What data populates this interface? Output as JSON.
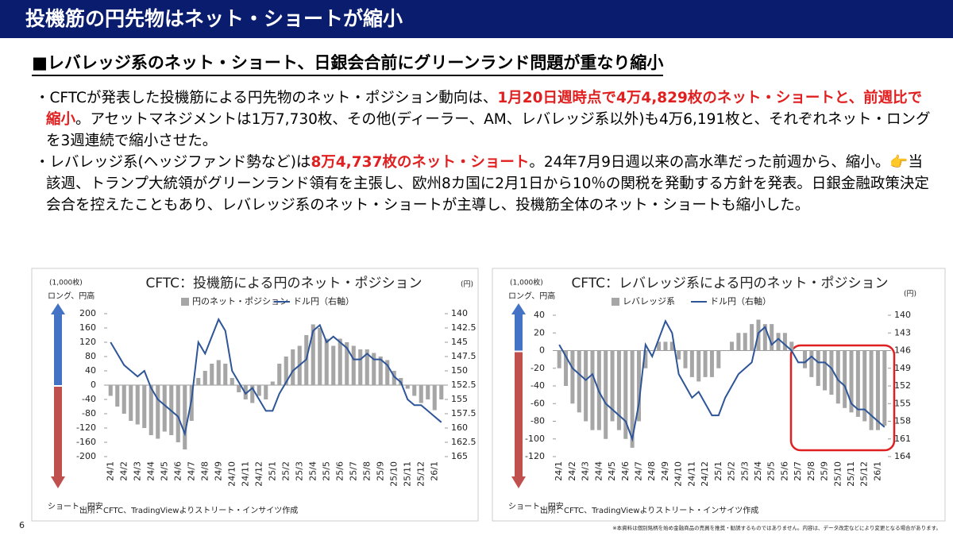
{
  "header": {
    "title": "投機筋の円先物はネット・ショートが縮小"
  },
  "subtitle": "■レバレッジ系のネット・ショート、日銀会合前にグリーンランド問題が重なり縮小",
  "bullets": [
    {
      "segments": [
        {
          "text": "・CFTCが発表した投機筋による円先物のネット・ポジション動向は、",
          "highlight": false
        },
        {
          "text": "1月20日週時点で4万4,829枚のネット・ショートと、前週比で縮小",
          "highlight": true
        },
        {
          "text": "。アセットマネジメントは1万7,730枚、その他(ディーラー、AM、レバレッジ系以外)も4万6,191枚と、それぞれネット・ロングを3週連続で縮小させた。",
          "highlight": false
        }
      ]
    },
    {
      "segments": [
        {
          "text": "・レバレッジ系(ヘッジファンド勢など)は",
          "highlight": false
        },
        {
          "text": "8万4,737枚のネット・ショート",
          "highlight": true
        },
        {
          "text": "。24年7月9日週以来の高水準だった前週から、縮小。👉当該週、トランプ大統領がグリーンランド領有を主張し、欧州8カ国に2月1日から10％の関税を発動する方針を発表。日銀金融政策決定会合を控えたこともあり、レバレッジ系のネット・ショートが主導し、投機筋全体のネット・ショートも縮小した。",
          "highlight": false
        }
      ]
    }
  ],
  "chart_data": [
    {
      "type": "bar-line",
      "title": "CFTC：投機筋による円のネット・ポジション",
      "y_unit": "(1,000枚)",
      "y2_unit": "(円)",
      "long_label": "ロング、円高",
      "short_label": "ショート、円安",
      "source": "出所：CFTC、TradingViewよりストリート・インサイツ作成",
      "categories": [
        "24/1",
        null,
        "24/2",
        null,
        "24/3",
        null,
        "24/4",
        null,
        "24/5",
        null,
        "24/6",
        null,
        "24/7",
        null,
        "24/8",
        null,
        "24/9",
        null,
        "24/10",
        null,
        "24/11",
        null,
        "24/12",
        null,
        "25/1",
        null,
        "25/2",
        null,
        "25/3",
        null,
        "25/4",
        null,
        "25/5",
        null,
        "25/6",
        null,
        "25/7",
        null,
        "25/8",
        null,
        "25/9",
        null,
        "25/10",
        null,
        "25/11",
        null,
        "25/12",
        null,
        "26/1",
        null
      ],
      "series": [
        {
          "name": "円のネット・ポジション",
          "color": "#a6a6a6",
          "values": [
            -30,
            -60,
            -80,
            -100,
            -110,
            -120,
            -140,
            -150,
            -130,
            -140,
            -160,
            -180,
            -100,
            20,
            40,
            60,
            70,
            60,
            20,
            -20,
            -40,
            -50,
            -30,
            -40,
            10,
            60,
            80,
            100,
            110,
            140,
            170,
            160,
            130,
            110,
            130,
            120,
            110,
            100,
            100,
            90,
            80,
            70,
            40,
            20,
            -10,
            -30,
            -50,
            -40,
            -70,
            -40
          ]
        },
        {
          "name": "ドル円（右軸）",
          "color": "#2e5597",
          "axis": "y2",
          "values": [
            145,
            147,
            149,
            150,
            151,
            150,
            153,
            155,
            156,
            157,
            158,
            161,
            155,
            145,
            147,
            144,
            141,
            143,
            150,
            152,
            154,
            153,
            155,
            157,
            157,
            154,
            152,
            150,
            149,
            148,
            143,
            142,
            145,
            144,
            145,
            146,
            148,
            148,
            147,
            148,
            148,
            149,
            151,
            152,
            155,
            156,
            156,
            157,
            158,
            159
          ]
        }
      ],
      "ylim": [
        -200,
        200
      ],
      "yticks": [
        -200,
        -160,
        -120,
        -80,
        -40,
        0,
        40,
        80,
        120,
        160,
        200
      ],
      "y2lim": [
        140,
        165
      ],
      "y2_inverted": true,
      "y2ticks": [
        140,
        142.5,
        145,
        147.5,
        150,
        152.5,
        155,
        157.5,
        160,
        162.5,
        165
      ]
    },
    {
      "type": "bar-line",
      "title": "CFTC：レバレッジ系による円のネット・ポジション",
      "y_unit": "(1,000枚)",
      "y2_unit": "(円)",
      "long_label": "ロング、円高",
      "short_label": "ショート、円安",
      "source": "出所：CFTC、TradingViewよりストリート・インサイツ作成",
      "categories": [
        "24/1",
        null,
        "24/2",
        null,
        "24/3",
        null,
        "24/4",
        null,
        "24/5",
        null,
        "24/6",
        null,
        "24/7",
        null,
        "24/8",
        null,
        "24/9",
        null,
        "24/10",
        null,
        "24/11",
        null,
        "24/12",
        null,
        "25/1",
        null,
        "25/2",
        null,
        "25/3",
        null,
        "25/4",
        null,
        "25/5",
        null,
        "25/6",
        null,
        "25/7",
        null,
        "25/8",
        null,
        "25/9",
        null,
        "25/10",
        null,
        "25/11",
        null,
        "25/12",
        null,
        "26/1",
        null
      ],
      "series": [
        {
          "name": "レバレッジ系",
          "color": "#a6a6a6",
          "values": [
            -20,
            -40,
            -60,
            -70,
            -80,
            -90,
            -90,
            -100,
            -80,
            -90,
            -100,
            -110,
            -80,
            -20,
            0,
            10,
            10,
            10,
            -10,
            -20,
            -30,
            -35,
            -30,
            -30,
            -20,
            0,
            10,
            20,
            20,
            30,
            35,
            30,
            30,
            20,
            20,
            10,
            0,
            -20,
            -30,
            -40,
            -45,
            -50,
            -60,
            -65,
            -70,
            -75,
            -80,
            -90,
            -90,
            -85
          ]
        },
        {
          "name": "ドル円（右軸）",
          "color": "#2e5597",
          "axis": "y2",
          "values": [
            145,
            147,
            149,
            150,
            151,
            150,
            153,
            155,
            156,
            157,
            158,
            161,
            155,
            145,
            147,
            144,
            141,
            143,
            150,
            152,
            154,
            153,
            155,
            157,
            157,
            154,
            152,
            150,
            149,
            148,
            143,
            142,
            145,
            144,
            145,
            146,
            148,
            148,
            147,
            148,
            148,
            149,
            151,
            152,
            155,
            156,
            156,
            157,
            158,
            159
          ]
        }
      ],
      "ylim": [
        -120,
        40
      ],
      "yticks": [
        -120,
        -100,
        -80,
        -60,
        -40,
        -20,
        0,
        20,
        40
      ],
      "y2lim": [
        140,
        164
      ],
      "y2_inverted": true,
      "y2ticks": [
        140,
        143,
        146,
        149,
        152,
        155,
        158,
        161,
        164
      ]
    }
  ],
  "page_number": "6",
  "disclaimer": "※本資料は個別銘柄を始め金融商品の売買を推奨・勧誘するものではありません。内容は、データ改定などにより変更となる場合があります。"
}
